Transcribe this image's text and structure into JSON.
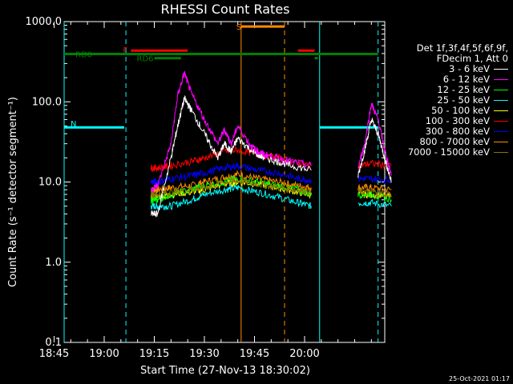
{
  "chart_data": {
    "type": "line",
    "title": "RHESSI Count Rates",
    "xlabel": "Start Time (27-Nov-13 18:30:02)",
    "ylabel": "Count Rate (s⁻¹ detector segment⁻¹)",
    "yscale": "log",
    "ylim": [
      0.1,
      1000
    ],
    "xlim_minutes": [
      18.0,
      114.0
    ],
    "yticks": [
      "1000.0",
      "100.0",
      "10.0",
      "1.0",
      "0.1"
    ],
    "xticks": [
      "18:45",
      "19:00",
      "19:15",
      "19:30",
      "19:45",
      "20:00"
    ],
    "grid": false,
    "legend": {
      "placement": "right",
      "header": [
        "Det 1f,3f,4f,5f,6f,9f,",
        "FDecim 1, Att 0"
      ],
      "entries": [
        {
          "label": "3 - 6 keV",
          "color": "#ffffff"
        },
        {
          "label": "6 - 12 keV",
          "color": "#ff00ff"
        },
        {
          "label": "12 - 25 keV",
          "color": "#00ff00"
        },
        {
          "label": "25 - 50 keV",
          "color": "#00ffff"
        },
        {
          "label": "50 - 100 keV",
          "color": "#ffff00"
        },
        {
          "label": "100 - 300 keV",
          "color": "#ff0000"
        },
        {
          "label": "300 - 800 keV",
          "color": "#0000ff"
        },
        {
          "label": "800 - 7000 keV",
          "color": "#ff8c00"
        },
        {
          "label": "7000 - 15000 keV",
          "color": "#8b7500"
        }
      ]
    },
    "series": [
      {
        "name": "3 - 6 keV",
        "segments": [
          {
            "x": [
              44,
              46,
              50,
              52,
              54,
              56,
              60,
              64,
              66,
              68,
              70,
              74,
              76,
              78,
              82,
              86,
              92
            ],
            "y": [
              4,
              4,
              20,
              50,
              110,
              80,
              40,
              20,
              30,
              24,
              35,
              25,
              22,
              20,
              18,
              16,
              14
            ]
          },
          {
            "x": [
              106,
              108,
              110,
              112,
              114,
              116
            ],
            "y": [
              12,
              25,
              60,
              40,
              20,
              10
            ]
          }
        ]
      },
      {
        "name": "6 - 12 keV",
        "segments": [
          {
            "x": [
              44,
              46,
              50,
              52,
              54,
              56,
              60,
              64,
              66,
              68,
              70,
              74,
              76,
              78,
              82,
              86,
              92
            ],
            "y": [
              8,
              9,
              30,
              120,
              230,
              130,
              60,
              30,
              45,
              30,
              50,
              28,
              24,
              22,
              20,
              18,
              16
            ]
          },
          {
            "x": [
              106,
              108,
              110,
              112,
              114,
              116
            ],
            "y": [
              15,
              30,
              95,
              60,
              25,
              12
            ]
          }
        ]
      },
      {
        "name": "12 - 25 keV",
        "segments": [
          {
            "x": [
              44,
              46,
              50,
              56,
              60,
              66,
              70,
              76,
              82,
              88,
              92
            ],
            "y": [
              6,
              6,
              7,
              8,
              9,
              10,
              11,
              10,
              9,
              8,
              7
            ]
          },
          {
            "x": [
              106,
              110,
              116
            ],
            "y": [
              7,
              7,
              6
            ]
          }
        ]
      },
      {
        "name": "25 - 50 keV",
        "segments": [
          {
            "x": [
              44,
              46,
              50,
              56,
              60,
              66,
              70,
              76,
              82,
              88,
              92
            ],
            "y": [
              5,
              5,
              5,
              6,
              7,
              8,
              8.5,
              7.5,
              6.5,
              5.5,
              5
            ]
          },
          {
            "x": [
              106,
              110,
              116
            ],
            "y": [
              5.5,
              5.5,
              5
            ]
          }
        ]
      },
      {
        "name": "50 - 100 keV",
        "segments": [
          {
            "x": [
              44,
              46,
              50,
              56,
              60,
              66,
              70,
              76,
              82,
              88,
              92
            ],
            "y": [
              6.5,
              6.5,
              7,
              7.5,
              8,
              9.5,
              10,
              9.5,
              8.5,
              7.5,
              7
            ]
          },
          {
            "x": [
              106,
              110,
              116
            ],
            "y": [
              7,
              7,
              6.5
            ]
          }
        ]
      },
      {
        "name": "100 - 300 keV",
        "segments": [
          {
            "x": [
              44,
              46,
              50,
              56,
              60,
              66,
              70,
              76,
              82,
              88,
              92
            ],
            "y": [
              15,
              15,
              16,
              18,
              20,
              24,
              25,
              22,
              20,
              17,
              16
            ]
          },
          {
            "x": [
              106,
              110,
              116
            ],
            "y": [
              16,
              17,
              16
            ]
          }
        ]
      },
      {
        "name": "300 - 800 keV",
        "segments": [
          {
            "x": [
              44,
              46,
              50,
              56,
              60,
              66,
              70,
              76,
              82,
              88,
              92
            ],
            "y": [
              10,
              10,
              11,
              12,
              13,
              15,
              16,
              14,
              13,
              11,
              10.5
            ]
          },
          {
            "x": [
              106,
              110,
              116
            ],
            "y": [
              11,
              11,
              10.5
            ]
          }
        ]
      },
      {
        "name": "800 - 7000 keV",
        "segments": [
          {
            "x": [
              44,
              46,
              50,
              56,
              60,
              66,
              70,
              76,
              82,
              88,
              92
            ],
            "y": [
              8,
              8,
              8.5,
              9,
              10,
              11.5,
              12.5,
              11,
              10,
              9,
              8.5
            ]
          },
          {
            "x": [
              106,
              110,
              116
            ],
            "y": [
              8.5,
              8.5,
              8
            ]
          }
        ]
      },
      {
        "name": "7000 - 15000 keV",
        "segments": [
          {
            "x": [
              44,
              46,
              50,
              56,
              60,
              66,
              70,
              76,
              82,
              88,
              92
            ],
            "y": [
              7,
              7,
              7.5,
              8,
              8.5,
              10,
              10.5,
              9.5,
              8.5,
              8,
              7.5
            ]
          },
          {
            "x": [
              106,
              110,
              116
            ],
            "y": [
              7.5,
              7.5,
              7
            ]
          }
        ]
      }
    ],
    "vertical_markers": [
      {
        "x": 18.0,
        "color": "#00ffff",
        "style": "solid"
      },
      {
        "x": 36.5,
        "color": "#00ffff",
        "style": "dashed"
      },
      {
        "x": 71.0,
        "color": "#ff8c00",
        "style": "solid"
      },
      {
        "x": 84.0,
        "color": "#ff8c00",
        "style": "dashed"
      },
      {
        "x": 94.5,
        "color": "#00ffff",
        "style": "solid"
      },
      {
        "x": 112.0,
        "color": "#00ffff",
        "style": "dashed"
      }
    ],
    "state_bars": [
      {
        "label": "N",
        "color": "#00ffff",
        "y": 48,
        "segments": [
          [
            18,
            36
          ],
          [
            94.5,
            112
          ]
        ]
      },
      {
        "label": "S",
        "color": "#ff8c00",
        "y": 870,
        "segments": [
          [
            71,
            84
          ]
        ]
      },
      {
        "label": "F",
        "color": "#ff0000",
        "y": 435,
        "segments": [
          [
            38,
            55
          ],
          [
            88,
            93
          ]
        ]
      },
      {
        "label": "RD0",
        "color": "#008000",
        "y": 395,
        "segments": [
          [
            18,
            112
          ]
        ]
      },
      {
        "label": "RD6",
        "color": "#008000",
        "y": 350,
        "segments": [
          [
            45,
            53
          ],
          [
            93,
            94
          ]
        ]
      }
    ],
    "footer_stamp": "25-Oct-2021 01:17"
  }
}
